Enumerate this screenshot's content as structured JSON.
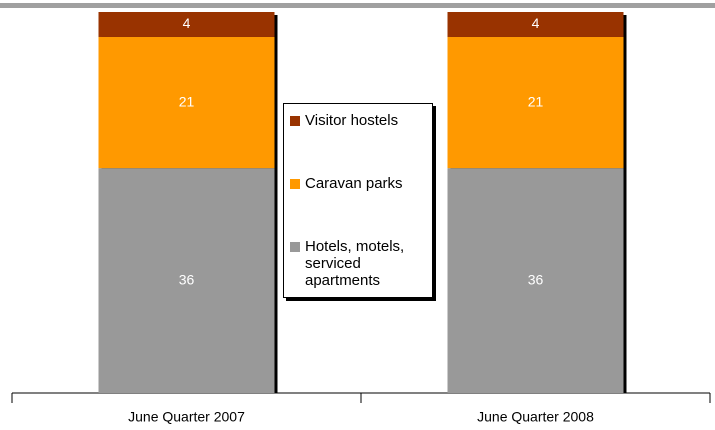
{
  "chart_data": {
    "type": "stacked_bar",
    "categories": [
      "June Quarter 2007",
      "June Quarter 2008"
    ],
    "series": [
      {
        "name": "Hotels, motels, serviced apartments",
        "color": "#999999",
        "values": [
          36,
          36
        ]
      },
      {
        "name": "Caravan parks",
        "color": "#ff9900",
        "values": [
          21,
          21
        ]
      },
      {
        "name": "Visitor hostels",
        "color": "#993300",
        "values": [
          4,
          4
        ]
      }
    ],
    "legend": "center"
  }
}
